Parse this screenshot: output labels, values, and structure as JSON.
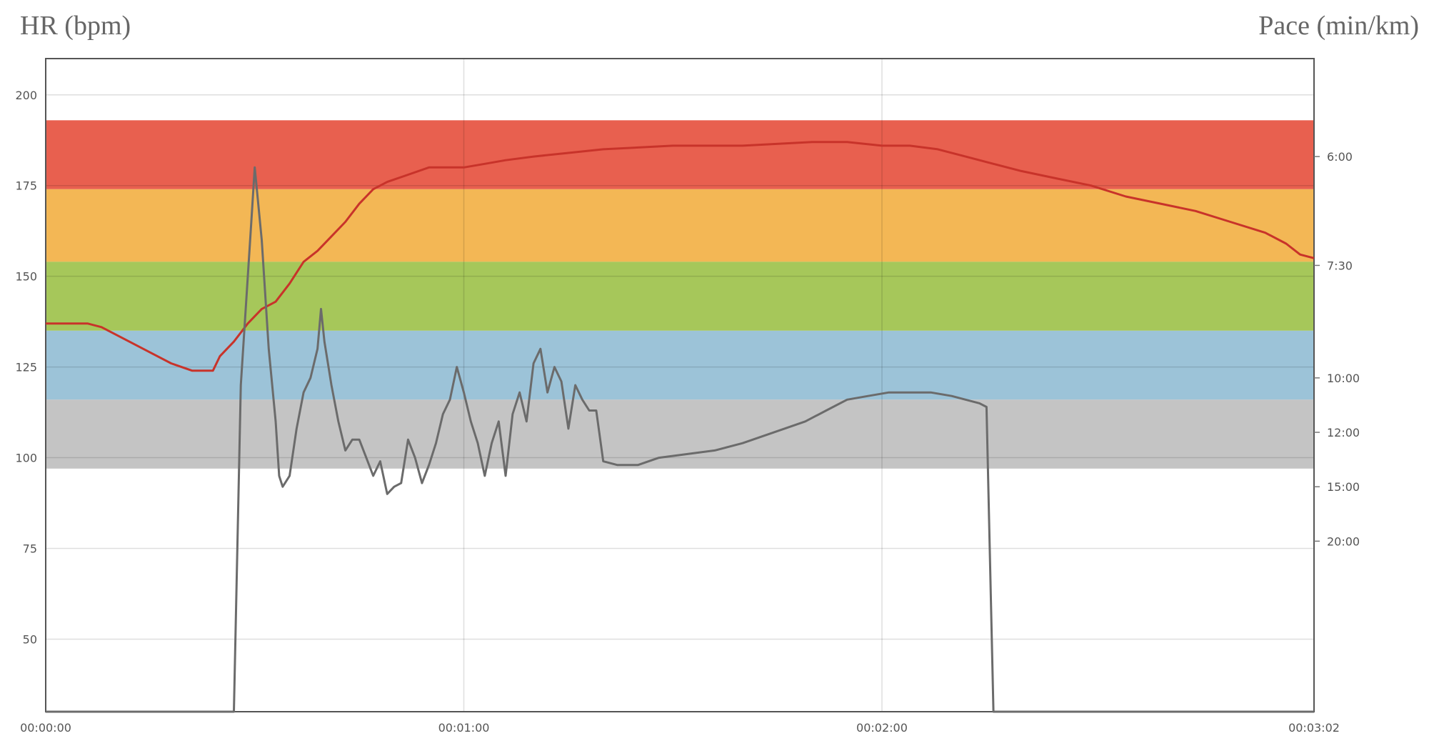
{
  "chart_data": {
    "type": "line",
    "left_axis_title": "HR (bpm)",
    "right_axis_title": "Pace (min/km)",
    "x_tick_labels": [
      "00:00:00",
      "00:01:00",
      "00:02:00",
      "00:03:02"
    ],
    "x_tick_seconds": [
      0,
      60,
      120,
      182
    ],
    "x_range_seconds": [
      0,
      182
    ],
    "y_left_range": [
      30,
      210
    ],
    "y_left_ticks": [
      200,
      175,
      150,
      125,
      100,
      75,
      50
    ],
    "y_right_ticks": [
      {
        "label": "6:00",
        "hr": 183
      },
      {
        "label": "7:30",
        "hr": 153
      },
      {
        "label": "10:00",
        "hr": 122
      },
      {
        "label": "12:00",
        "hr": 107
      },
      {
        "label": "15:00",
        "hr": 92
      },
      {
        "label": "20:00",
        "hr": 77
      }
    ],
    "hr_zones": [
      {
        "from": 174,
        "to": 193,
        "color": "#e8604f"
      },
      {
        "from": 154,
        "to": 174,
        "color": "#f3b755"
      },
      {
        "from": 135,
        "to": 154,
        "color": "#a6c75a"
      },
      {
        "from": 116,
        "to": 135,
        "color": "#9cc3d8"
      },
      {
        "from": 97,
        "to": 116,
        "color": "#c4c4c4"
      }
    ],
    "grid": true,
    "series": [
      {
        "name": "",
        "axis": "left",
        "color": "#c8332a",
        "points": [
          [
            0,
            137
          ],
          [
            6,
            137
          ],
          [
            8,
            136
          ],
          [
            10,
            134
          ],
          [
            12,
            132
          ],
          [
            15,
            129
          ],
          [
            18,
            126
          ],
          [
            21,
            124
          ],
          [
            24,
            124
          ],
          [
            25,
            128
          ],
          [
            27,
            132
          ],
          [
            29,
            137
          ],
          [
            31,
            141
          ],
          [
            33,
            143
          ],
          [
            35,
            148
          ],
          [
            37,
            154
          ],
          [
            39,
            157
          ],
          [
            41,
            161
          ],
          [
            43,
            165
          ],
          [
            45,
            170
          ],
          [
            47,
            174
          ],
          [
            49,
            176
          ],
          [
            52,
            178
          ],
          [
            55,
            180
          ],
          [
            58,
            180
          ],
          [
            60,
            180
          ],
          [
            63,
            181
          ],
          [
            66,
            182
          ],
          [
            70,
            183
          ],
          [
            75,
            184
          ],
          [
            80,
            185
          ],
          [
            90,
            186
          ],
          [
            100,
            186
          ],
          [
            110,
            187
          ],
          [
            115,
            187
          ],
          [
            120,
            186
          ],
          [
            124,
            186
          ],
          [
            128,
            185
          ],
          [
            132,
            183
          ],
          [
            136,
            181
          ],
          [
            140,
            179
          ],
          [
            145,
            177
          ],
          [
            150,
            175
          ],
          [
            155,
            172
          ],
          [
            160,
            170
          ],
          [
            165,
            168
          ],
          [
            170,
            165
          ],
          [
            175,
            162
          ],
          [
            178,
            159
          ],
          [
            180,
            156
          ],
          [
            182,
            155
          ]
        ]
      },
      {
        "name": "",
        "axis": "left",
        "color": "#6b6b6b",
        "points": [
          [
            0,
            30
          ],
          [
            27,
            30
          ],
          [
            28,
            120
          ],
          [
            29,
            150
          ],
          [
            29.5,
            165
          ],
          [
            30,
            180
          ],
          [
            31,
            160
          ],
          [
            32,
            130
          ],
          [
            33,
            110
          ],
          [
            33.5,
            95
          ],
          [
            34,
            92
          ],
          [
            35,
            95
          ],
          [
            36,
            108
          ],
          [
            37,
            118
          ],
          [
            38,
            122
          ],
          [
            39,
            130
          ],
          [
            39.5,
            141
          ],
          [
            40,
            132
          ],
          [
            41,
            120
          ],
          [
            42,
            110
          ],
          [
            43,
            102
          ],
          [
            44,
            105
          ],
          [
            45,
            105
          ],
          [
            46,
            100
          ],
          [
            47,
            95
          ],
          [
            48,
            99
          ],
          [
            49,
            90
          ],
          [
            50,
            92
          ],
          [
            51,
            93
          ],
          [
            52,
            105
          ],
          [
            53,
            100
          ],
          [
            54,
            93
          ],
          [
            55,
            98
          ],
          [
            56,
            104
          ],
          [
            57,
            112
          ],
          [
            58,
            116
          ],
          [
            59,
            125
          ],
          [
            60,
            118
          ],
          [
            61,
            110
          ],
          [
            62,
            104
          ],
          [
            63,
            95
          ],
          [
            64,
            104
          ],
          [
            65,
            110
          ],
          [
            66,
            95
          ],
          [
            67,
            112
          ],
          [
            68,
            118
          ],
          [
            69,
            110
          ],
          [
            70,
            126
          ],
          [
            71,
            130
          ],
          [
            72,
            118
          ],
          [
            73,
            125
          ],
          [
            74,
            121
          ],
          [
            75,
            108
          ],
          [
            76,
            120
          ],
          [
            77,
            116
          ],
          [
            78,
            113
          ],
          [
            79,
            113
          ],
          [
            80,
            99
          ],
          [
            82,
            98
          ],
          [
            85,
            98
          ],
          [
            88,
            100
          ],
          [
            92,
            101
          ],
          [
            96,
            102
          ],
          [
            100,
            104
          ],
          [
            103,
            106
          ],
          [
            106,
            108
          ],
          [
            109,
            110
          ],
          [
            112,
            113
          ],
          [
            115,
            116
          ],
          [
            118,
            117
          ],
          [
            121,
            118
          ],
          [
            124,
            118
          ],
          [
            127,
            118
          ],
          [
            130,
            117
          ],
          [
            132,
            116
          ],
          [
            134,
            115
          ],
          [
            135,
            114
          ],
          [
            136,
            30
          ],
          [
            182,
            30
          ]
        ]
      }
    ]
  }
}
